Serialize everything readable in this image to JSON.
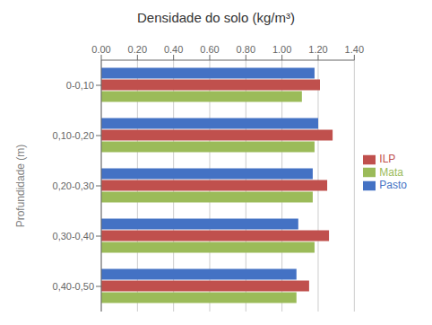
{
  "chart_data": {
    "type": "bar",
    "orientation": "horizontal",
    "title": "Densidade do solo (kg/m³)",
    "ylabel": "Profundidade (m)",
    "categories": [
      "0-0,10",
      "0,10-0,20",
      "0,20-0,30",
      "0,30-0,40",
      "0,40-0,50"
    ],
    "series": [
      {
        "name": "Pasto",
        "color": "#4472C4",
        "values": [
          1.18,
          1.2,
          1.17,
          1.09,
          1.08
        ]
      },
      {
        "name": "ILP",
        "color": "#C0504D",
        "values": [
          1.21,
          1.28,
          1.25,
          1.26,
          1.15
        ]
      },
      {
        "name": "Mata",
        "color": "#9BBB59",
        "values": [
          1.11,
          1.18,
          1.17,
          1.18,
          1.08
        ]
      }
    ],
    "xlim": [
      0.0,
      1.4
    ],
    "xticks": [
      {
        "value": 0.0,
        "label": "0.00"
      },
      {
        "value": 0.2,
        "label": "0.20"
      },
      {
        "value": 0.4,
        "label": "0.40"
      },
      {
        "value": 0.6,
        "label": "0.60"
      },
      {
        "value": 0.8,
        "label": "0.80"
      },
      {
        "value": 1.0,
        "label": "1.00"
      },
      {
        "value": 1.2,
        "label": "1.20"
      },
      {
        "value": 1.4,
        "label": "1.40"
      }
    ],
    "grid": true,
    "legend": "right"
  }
}
